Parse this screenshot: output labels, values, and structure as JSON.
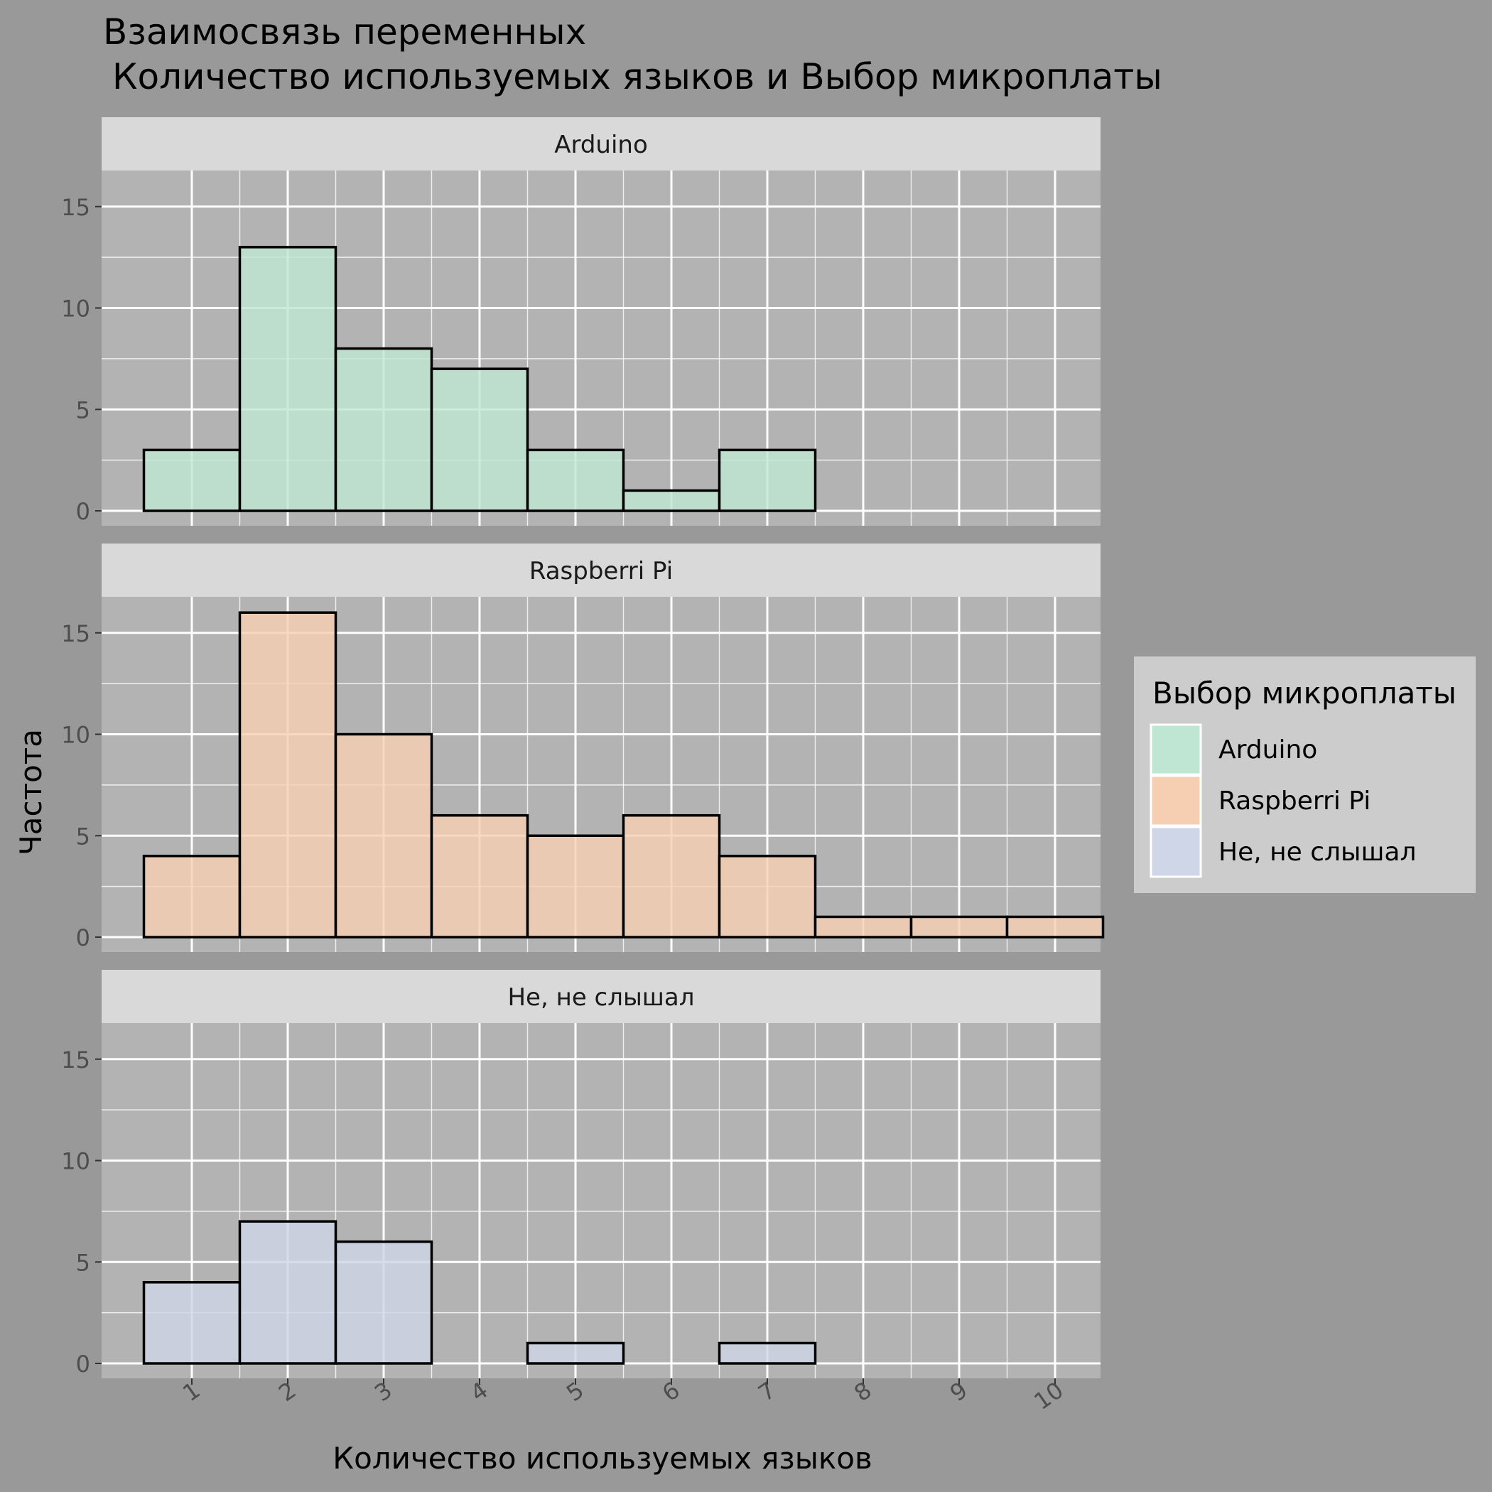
{
  "chart_data": {
    "type": "bar",
    "subtype": "faceted-histogram",
    "title_line1": "Взаимосвязь переменных",
    "title_line2": "Количество используемых языков и Выбор микроплаты",
    "xlabel": "Количество используемых языков",
    "ylabel": "Частота",
    "x_ticks": [
      "1",
      "2",
      "3",
      "4",
      "5",
      "6",
      "7",
      "8",
      "9",
      "10"
    ],
    "categories": [
      1,
      2,
      3,
      4,
      5,
      6,
      7,
      8,
      9,
      10
    ],
    "y_ticks": [
      "0",
      "5",
      "10",
      "15"
    ],
    "ylim": [
      0,
      17
    ],
    "xlim": [
      0.5,
      10.5
    ],
    "grid": true,
    "legend": {
      "title": "Выбор микроплаты",
      "position": "right"
    },
    "series": [
      {
        "name": "Arduino",
        "color": "#bfe6d3",
        "values": [
          3,
          13,
          8,
          7,
          3,
          1,
          3,
          0,
          0,
          0
        ]
      },
      {
        "name": "Raspberri Pi",
        "color": "#f6cfb2",
        "values": [
          4,
          16,
          10,
          6,
          5,
          6,
          4,
          1,
          1,
          1
        ]
      },
      {
        "name": "Не, не слышал",
        "color": "#cfd6e8",
        "values": [
          4,
          7,
          6,
          0,
          1,
          0,
          1,
          0,
          0,
          0
        ]
      }
    ]
  },
  "colors": {
    "page_background": "#999999",
    "panel_background": "#b3b3b3",
    "strip_background": "#d9d9d9",
    "grid": "#ffffff",
    "bar_outline": "#000000",
    "legend_background": "#cccccc"
  }
}
